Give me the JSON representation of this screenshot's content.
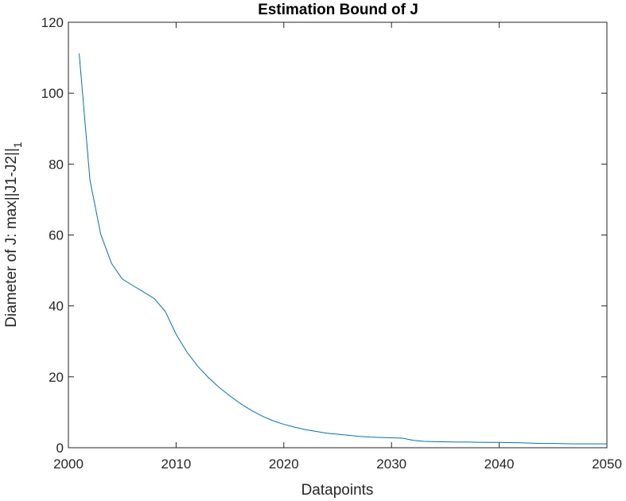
{
  "chart_data": {
    "type": "line",
    "title": "Estimation Bound of J",
    "xlabel": "Datapoints",
    "ylabel_main": "Diameter of J: max||J1-J2||",
    "ylabel_sub": "1",
    "xlim": [
      2000,
      2050
    ],
    "ylim": [
      0,
      120
    ],
    "xticks": [
      "2000",
      "2010",
      "2020",
      "2030",
      "2040",
      "2050"
    ],
    "yticks": [
      "0",
      "20",
      "40",
      "60",
      "80",
      "100",
      "120"
    ],
    "grid": false,
    "line_color": "#0072BD",
    "series": [
      {
        "x": [
          2001,
          2002,
          2003,
          2004,
          2005,
          2006,
          2007,
          2008,
          2009,
          2010,
          2011,
          2012,
          2013,
          2014,
          2015,
          2016,
          2017,
          2018,
          2019,
          2020,
          2021,
          2022,
          2023,
          2024,
          2025,
          2026,
          2027,
          2028,
          2029,
          2030,
          2031,
          2032,
          2033,
          2034,
          2035,
          2036,
          2037,
          2038,
          2039,
          2040,
          2041,
          2042,
          2043,
          2044,
          2045,
          2046,
          2047,
          2048,
          2049,
          2050
        ],
        "y": [
          111.2,
          75.5,
          60.2,
          52.0,
          47.6,
          45.7,
          43.9,
          42.0,
          38.4,
          32.0,
          27.0,
          23.0,
          19.8,
          17.0,
          14.6,
          12.4,
          10.5,
          8.9,
          7.6,
          6.6,
          5.8,
          5.1,
          4.6,
          4.1,
          3.8,
          3.5,
          3.2,
          3.0,
          2.9,
          2.8,
          2.7,
          2.1,
          1.8,
          1.7,
          1.65,
          1.6,
          1.6,
          1.55,
          1.5,
          1.5,
          1.45,
          1.4,
          1.3,
          1.2,
          1.2,
          1.15,
          1.1,
          1.1,
          1.1,
          1.1
        ]
      }
    ]
  }
}
